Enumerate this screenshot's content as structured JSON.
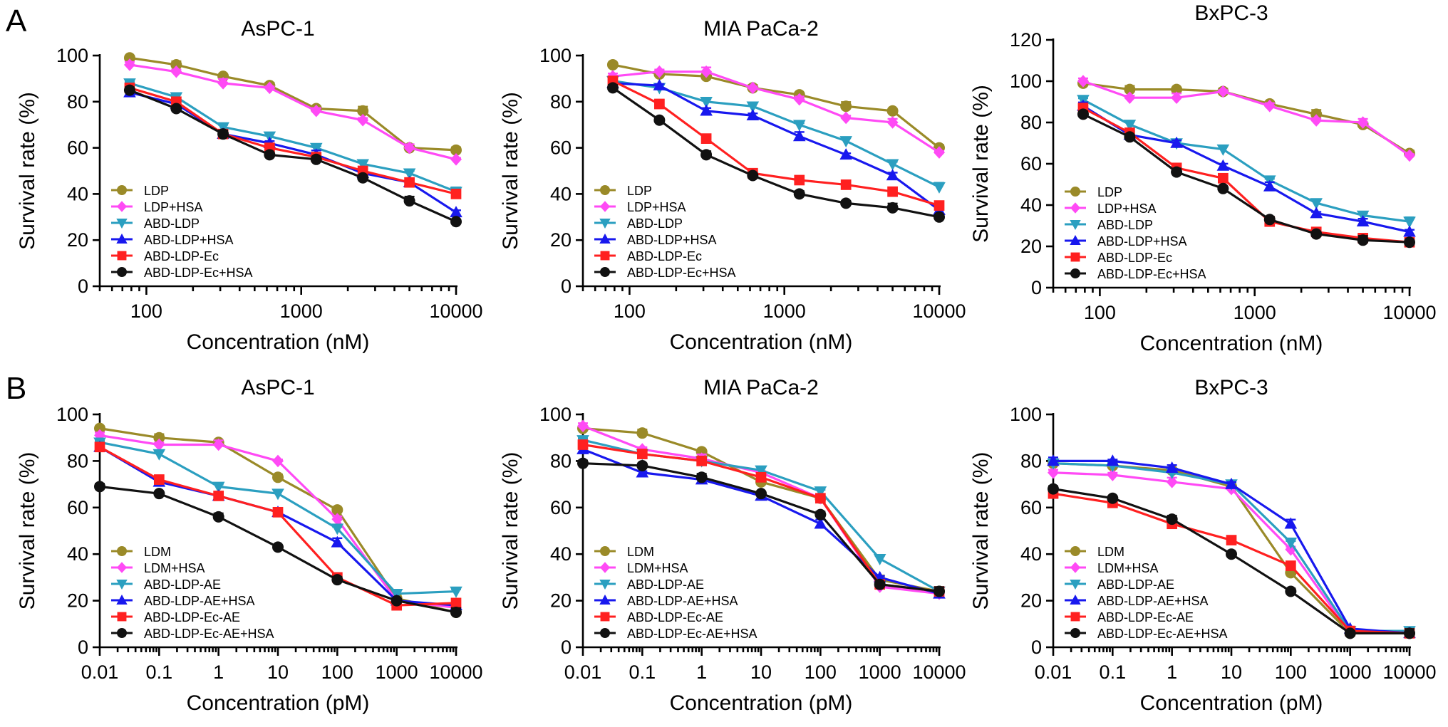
{
  "panel_labels": [
    "A",
    "B"
  ],
  "chart_data": [
    {
      "type": "line",
      "panel": "A",
      "title": "AsPC-1",
      "xlabel": "Concentration (nM)",
      "ylabel": "Survival rate (%)",
      "xscale": "log",
      "xlim": [
        50,
        10000
      ],
      "ylim": [
        0,
        100
      ],
      "xticks": [
        100,
        1000,
        10000
      ],
      "xtick_labels": [
        "100",
        "1000",
        "10000"
      ],
      "yticks": [
        0,
        20,
        40,
        60,
        80,
        100
      ],
      "ytick_labels": [
        "0",
        "20",
        "40",
        "60",
        "80",
        "100"
      ],
      "legend_position": "bottom-left",
      "x": [
        78,
        156,
        313,
        625,
        1250,
        2500,
        5000,
        10000
      ],
      "series": [
        {
          "name": "LDP",
          "color": "#9a8a28",
          "marker": "circle",
          "values": [
            99,
            96,
            91,
            87,
            77,
            76,
            60,
            59
          ]
        },
        {
          "name": "LDP+HSA",
          "color": "#ff4af5",
          "marker": "diamond",
          "values": [
            96,
            93,
            88,
            86,
            76,
            72,
            60,
            55
          ]
        },
        {
          "name": "ABD-LDP",
          "color": "#2b9fc0",
          "marker": "triangle-down",
          "values": [
            88,
            82,
            69,
            65,
            60,
            53,
            49,
            41
          ]
        },
        {
          "name": "ABD-LDP+HSA",
          "color": "#1818ee",
          "marker": "triangle-up",
          "values": [
            84,
            79,
            66,
            62,
            57,
            49,
            45,
            32
          ]
        },
        {
          "name": "ABD-LDP-Ec",
          "color": "#ff2020",
          "marker": "square",
          "values": [
            86,
            80,
            66,
            60,
            56,
            50,
            45,
            40
          ]
        },
        {
          "name": "ABD-LDP-Ec+HSA",
          "color": "#111111",
          "marker": "circle",
          "values": [
            85,
            77,
            66,
            57,
            55,
            47,
            37,
            28
          ]
        }
      ]
    },
    {
      "type": "line",
      "panel": "A",
      "title": "MIA PaCa-2",
      "xlabel": "Concentration (nM)",
      "ylabel": "Survival rate (%)",
      "xscale": "log",
      "xlim": [
        50,
        10000
      ],
      "ylim": [
        0,
        100
      ],
      "xticks": [
        100,
        1000,
        10000
      ],
      "xtick_labels": [
        "100",
        "1000",
        "10000"
      ],
      "yticks": [
        0,
        20,
        40,
        60,
        80,
        100
      ],
      "ytick_labels": [
        "0",
        "20",
        "40",
        "60",
        "80",
        "100"
      ],
      "legend_position": "bottom-left",
      "x": [
        78,
        156,
        313,
        625,
        1250,
        2500,
        5000,
        10000
      ],
      "series": [
        {
          "name": "LDP",
          "color": "#9a8a28",
          "marker": "circle",
          "values": [
            96,
            92,
            91,
            86,
            83,
            78,
            76,
            60
          ]
        },
        {
          "name": "LDP+HSA",
          "color": "#ff4af5",
          "marker": "diamond",
          "values": [
            91,
            93,
            93,
            86,
            81,
            73,
            71,
            58
          ]
        },
        {
          "name": "ABD-LDP",
          "color": "#2b9fc0",
          "marker": "triangle-down",
          "values": [
            89,
            86,
            80,
            78,
            70,
            63,
            53,
            43
          ]
        },
        {
          "name": "ABD-LDP+HSA",
          "color": "#1818ee",
          "marker": "triangle-up",
          "values": [
            88,
            87,
            76,
            74,
            65,
            57,
            48,
            33
          ]
        },
        {
          "name": "ABD-LDP-Ec",
          "color": "#ff2020",
          "marker": "square",
          "values": [
            89,
            79,
            64,
            49,
            46,
            44,
            41,
            35
          ]
        },
        {
          "name": "ABD-LDP-Ec+HSA",
          "color": "#111111",
          "marker": "circle",
          "values": [
            86,
            72,
            57,
            48,
            40,
            36,
            34,
            30
          ]
        }
      ]
    },
    {
      "type": "line",
      "panel": "A",
      "title": "BxPC-3",
      "xlabel": "Concentration (nM)",
      "ylabel": "Survival rate (%)",
      "xscale": "log",
      "xlim": [
        50,
        10000
      ],
      "ylim": [
        0,
        120
      ],
      "xticks": [
        100,
        1000,
        10000
      ],
      "xtick_labels": [
        "100",
        "1000",
        "10000"
      ],
      "yticks": [
        0,
        20,
        40,
        60,
        80,
        100,
        120
      ],
      "ytick_labels": [
        "0",
        "20",
        "40",
        "60",
        "80",
        "100",
        "120"
      ],
      "legend_position": "bottom-left",
      "x": [
        78,
        156,
        313,
        625,
        1250,
        2500,
        5000,
        10000
      ],
      "series": [
        {
          "name": "LDP",
          "color": "#9a8a28",
          "marker": "circle",
          "values": [
            99,
            96,
            96,
            95,
            89,
            84,
            79,
            65
          ]
        },
        {
          "name": "LDP+HSA",
          "color": "#ff4af5",
          "marker": "diamond",
          "values": [
            100,
            92,
            92,
            95,
            88,
            81,
            80,
            64
          ]
        },
        {
          "name": "ABD-LDP",
          "color": "#2b9fc0",
          "marker": "triangle-down",
          "values": [
            91,
            79,
            70,
            67,
            52,
            41,
            35,
            32
          ]
        },
        {
          "name": "ABD-LDP+HSA",
          "color": "#1818ee",
          "marker": "triangle-up",
          "values": [
            88,
            74,
            70,
            59,
            49,
            36,
            32,
            27
          ]
        },
        {
          "name": "ABD-LDP-Ec",
          "color": "#ff2020",
          "marker": "square",
          "values": [
            87,
            75,
            58,
            53,
            32,
            27,
            24,
            22
          ]
        },
        {
          "name": "ABD-LDP-Ec+HSA",
          "color": "#111111",
          "marker": "circle",
          "values": [
            84,
            73,
            56,
            48,
            33,
            26,
            23,
            22
          ]
        }
      ]
    },
    {
      "type": "line",
      "panel": "B",
      "title": "AsPC-1",
      "xlabel": "Concentration (pM)",
      "ylabel": "Survival rate (%)",
      "xscale": "log",
      "xlim": [
        0.01,
        10000
      ],
      "ylim": [
        0,
        100
      ],
      "xticks": [
        0.01,
        0.1,
        1,
        10,
        100,
        1000,
        10000
      ],
      "xtick_labels": [
        "0.01",
        "0.1",
        "1",
        "10",
        "100",
        "1000",
        "10000"
      ],
      "yticks": [
        0,
        20,
        40,
        60,
        80,
        100
      ],
      "ytick_labels": [
        "0",
        "20",
        "40",
        "60",
        "80",
        "100"
      ],
      "legend_position": "bottom-left",
      "x": [
        0.01,
        0.1,
        1,
        10,
        100,
        1000,
        10000
      ],
      "series": [
        {
          "name": "LDM",
          "color": "#9a8a28",
          "marker": "circle",
          "values": [
            94,
            90,
            88,
            73,
            59,
            21,
            15
          ]
        },
        {
          "name": "LDM+HSA",
          "color": "#ff4af5",
          "marker": "diamond",
          "values": [
            91,
            87,
            87,
            80,
            55,
            20,
            17
          ]
        },
        {
          "name": "ABD-LDP-AE",
          "color": "#2b9fc0",
          "marker": "triangle-down",
          "values": [
            88,
            83,
            69,
            66,
            51,
            23,
            24
          ]
        },
        {
          "name": "ABD-LDP-AE+HSA",
          "color": "#1818ee",
          "marker": "triangle-up",
          "values": [
            86,
            71,
            65,
            58,
            45,
            20,
            18
          ]
        },
        {
          "name": "ABD-LDP-Ec-AE",
          "color": "#ff2020",
          "marker": "square",
          "values": [
            86,
            72,
            65,
            58,
            30,
            18,
            19
          ]
        },
        {
          "name": "ABD-LDP-Ec-AE+HSA",
          "color": "#111111",
          "marker": "circle",
          "values": [
            69,
            66,
            56,
            43,
            29,
            20,
            15
          ]
        }
      ]
    },
    {
      "type": "line",
      "panel": "B",
      "title": "MIA PaCa-2",
      "xlabel": "Concentration (pM)",
      "ylabel": "Survival rate (%)",
      "xscale": "log",
      "xlim": [
        0.01,
        10000
      ],
      "ylim": [
        0,
        100
      ],
      "xticks": [
        0.01,
        0.1,
        1,
        10,
        100,
        1000,
        10000
      ],
      "xtick_labels": [
        "0.01",
        "0.1",
        "1",
        "10",
        "100",
        "1000",
        "10000"
      ],
      "yticks": [
        0,
        20,
        40,
        60,
        80,
        100
      ],
      "ytick_labels": [
        "0",
        "20",
        "40",
        "60",
        "80",
        "100"
      ],
      "legend_position": "bottom-left",
      "x": [
        0.01,
        0.1,
        1,
        10,
        100,
        1000,
        10000
      ],
      "series": [
        {
          "name": "LDM",
          "color": "#9a8a28",
          "marker": "circle",
          "values": [
            94,
            92,
            84,
            71,
            64,
            29,
            24
          ]
        },
        {
          "name": "LDM+HSA",
          "color": "#ff4af5",
          "marker": "diamond",
          "values": [
            95,
            85,
            81,
            75,
            64,
            26,
            23
          ]
        },
        {
          "name": "ABD-LDP-AE",
          "color": "#2b9fc0",
          "marker": "triangle-down",
          "values": [
            89,
            83,
            80,
            76,
            67,
            38,
            24
          ]
        },
        {
          "name": "ABD-LDP-AE+HSA",
          "color": "#1818ee",
          "marker": "triangle-up",
          "values": [
            85,
            75,
            72,
            65,
            53,
            30,
            23
          ]
        },
        {
          "name": "ABD-LDP-Ec-AE",
          "color": "#ff2020",
          "marker": "square",
          "values": [
            87,
            83,
            80,
            73,
            64,
            27,
            24
          ]
        },
        {
          "name": "ABD-LDP-Ec-AE+HSA",
          "color": "#111111",
          "marker": "circle",
          "values": [
            79,
            78,
            73,
            66,
            57,
            27,
            24
          ]
        }
      ]
    },
    {
      "type": "line",
      "panel": "B",
      "title": "BxPC-3",
      "xlabel": "Concentration (pM)",
      "ylabel": "Survival rate (%)",
      "xscale": "log",
      "xlim": [
        0.01,
        10000
      ],
      "ylim": [
        0,
        100
      ],
      "xticks": [
        0.01,
        0.1,
        1,
        10,
        100,
        1000,
        10000
      ],
      "xtick_labels": [
        "0.01",
        "0.1",
        "1",
        "10",
        "100",
        "1000",
        "10000"
      ],
      "yticks": [
        0,
        20,
        40,
        60,
        80,
        100
      ],
      "ytick_labels": [
        "0",
        "20",
        "40",
        "60",
        "80",
        "100"
      ],
      "legend_position": "bottom-left",
      "x": [
        0.01,
        0.1,
        1,
        10,
        100,
        1000,
        10000
      ],
      "series": [
        {
          "name": "LDM",
          "color": "#9a8a28",
          "marker": "circle",
          "values": [
            79,
            78,
            76,
            69,
            32,
            6,
            6
          ]
        },
        {
          "name": "LDM+HSA",
          "color": "#ff4af5",
          "marker": "diamond",
          "values": [
            75,
            74,
            71,
            68,
            42,
            6,
            6
          ]
        },
        {
          "name": "ABD-LDP-AE",
          "color": "#2b9fc0",
          "marker": "triangle-down",
          "values": [
            79,
            78,
            75,
            70,
            45,
            7,
            7
          ]
        },
        {
          "name": "ABD-LDP-AE+HSA",
          "color": "#1818ee",
          "marker": "triangle-up",
          "values": [
            80,
            80,
            77,
            70,
            53,
            8,
            6
          ]
        },
        {
          "name": "ABD-LDP-Ec-AE",
          "color": "#ff2020",
          "marker": "square",
          "values": [
            66,
            62,
            53,
            46,
            35,
            7,
            6
          ]
        },
        {
          "name": "ABD-LDP-Ec-AE+HSA",
          "color": "#111111",
          "marker": "circle",
          "values": [
            68,
            64,
            55,
            40,
            24,
            6,
            6
          ]
        }
      ]
    }
  ]
}
